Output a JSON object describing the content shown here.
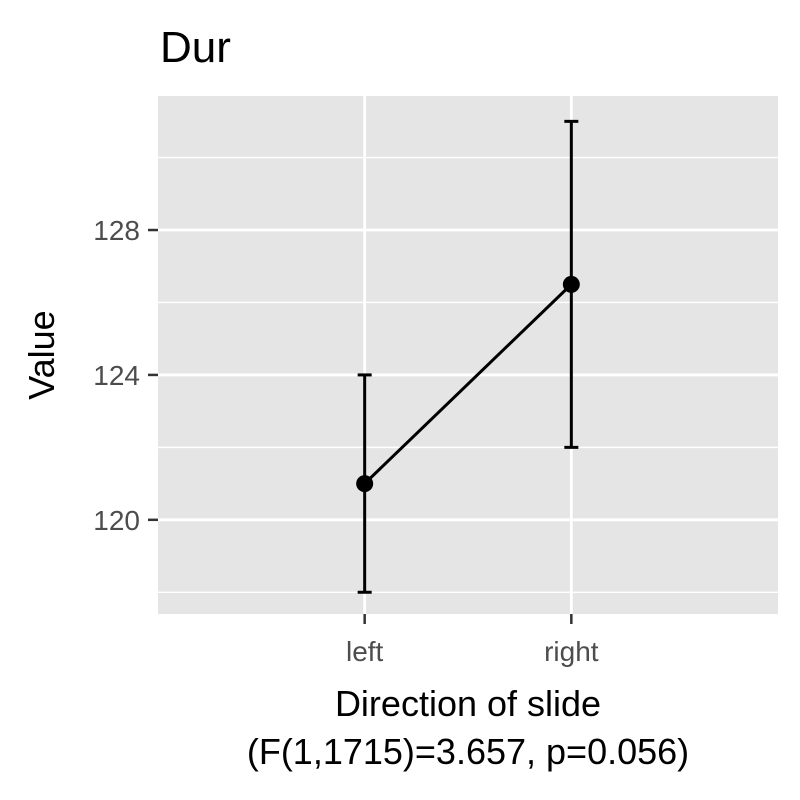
{
  "chart_data": {
    "type": "line",
    "title": "Dur",
    "xlabel": "Direction of slide",
    "xlabel_line2": "(F(1,1715)=3.657, p=0.056)",
    "ylabel": "Value",
    "categories": [
      "left",
      "right"
    ],
    "series": [
      {
        "values": [
          121.0,
          126.5
        ],
        "error_low": [
          118.0,
          122.0
        ],
        "error_high": [
          124.0,
          131.0
        ]
      }
    ],
    "ylim": [
      117.4,
      131.7
    ],
    "y_ticks": [
      120,
      124,
      128
    ],
    "y_tick_labels": [
      "120",
      "124",
      "128"
    ],
    "grid": true,
    "legend": "none",
    "colors": {
      "panel_background": "#e5e5e5",
      "grid": "#ffffff",
      "series": "#000000",
      "tick_text": "#4d4d4d"
    }
  }
}
